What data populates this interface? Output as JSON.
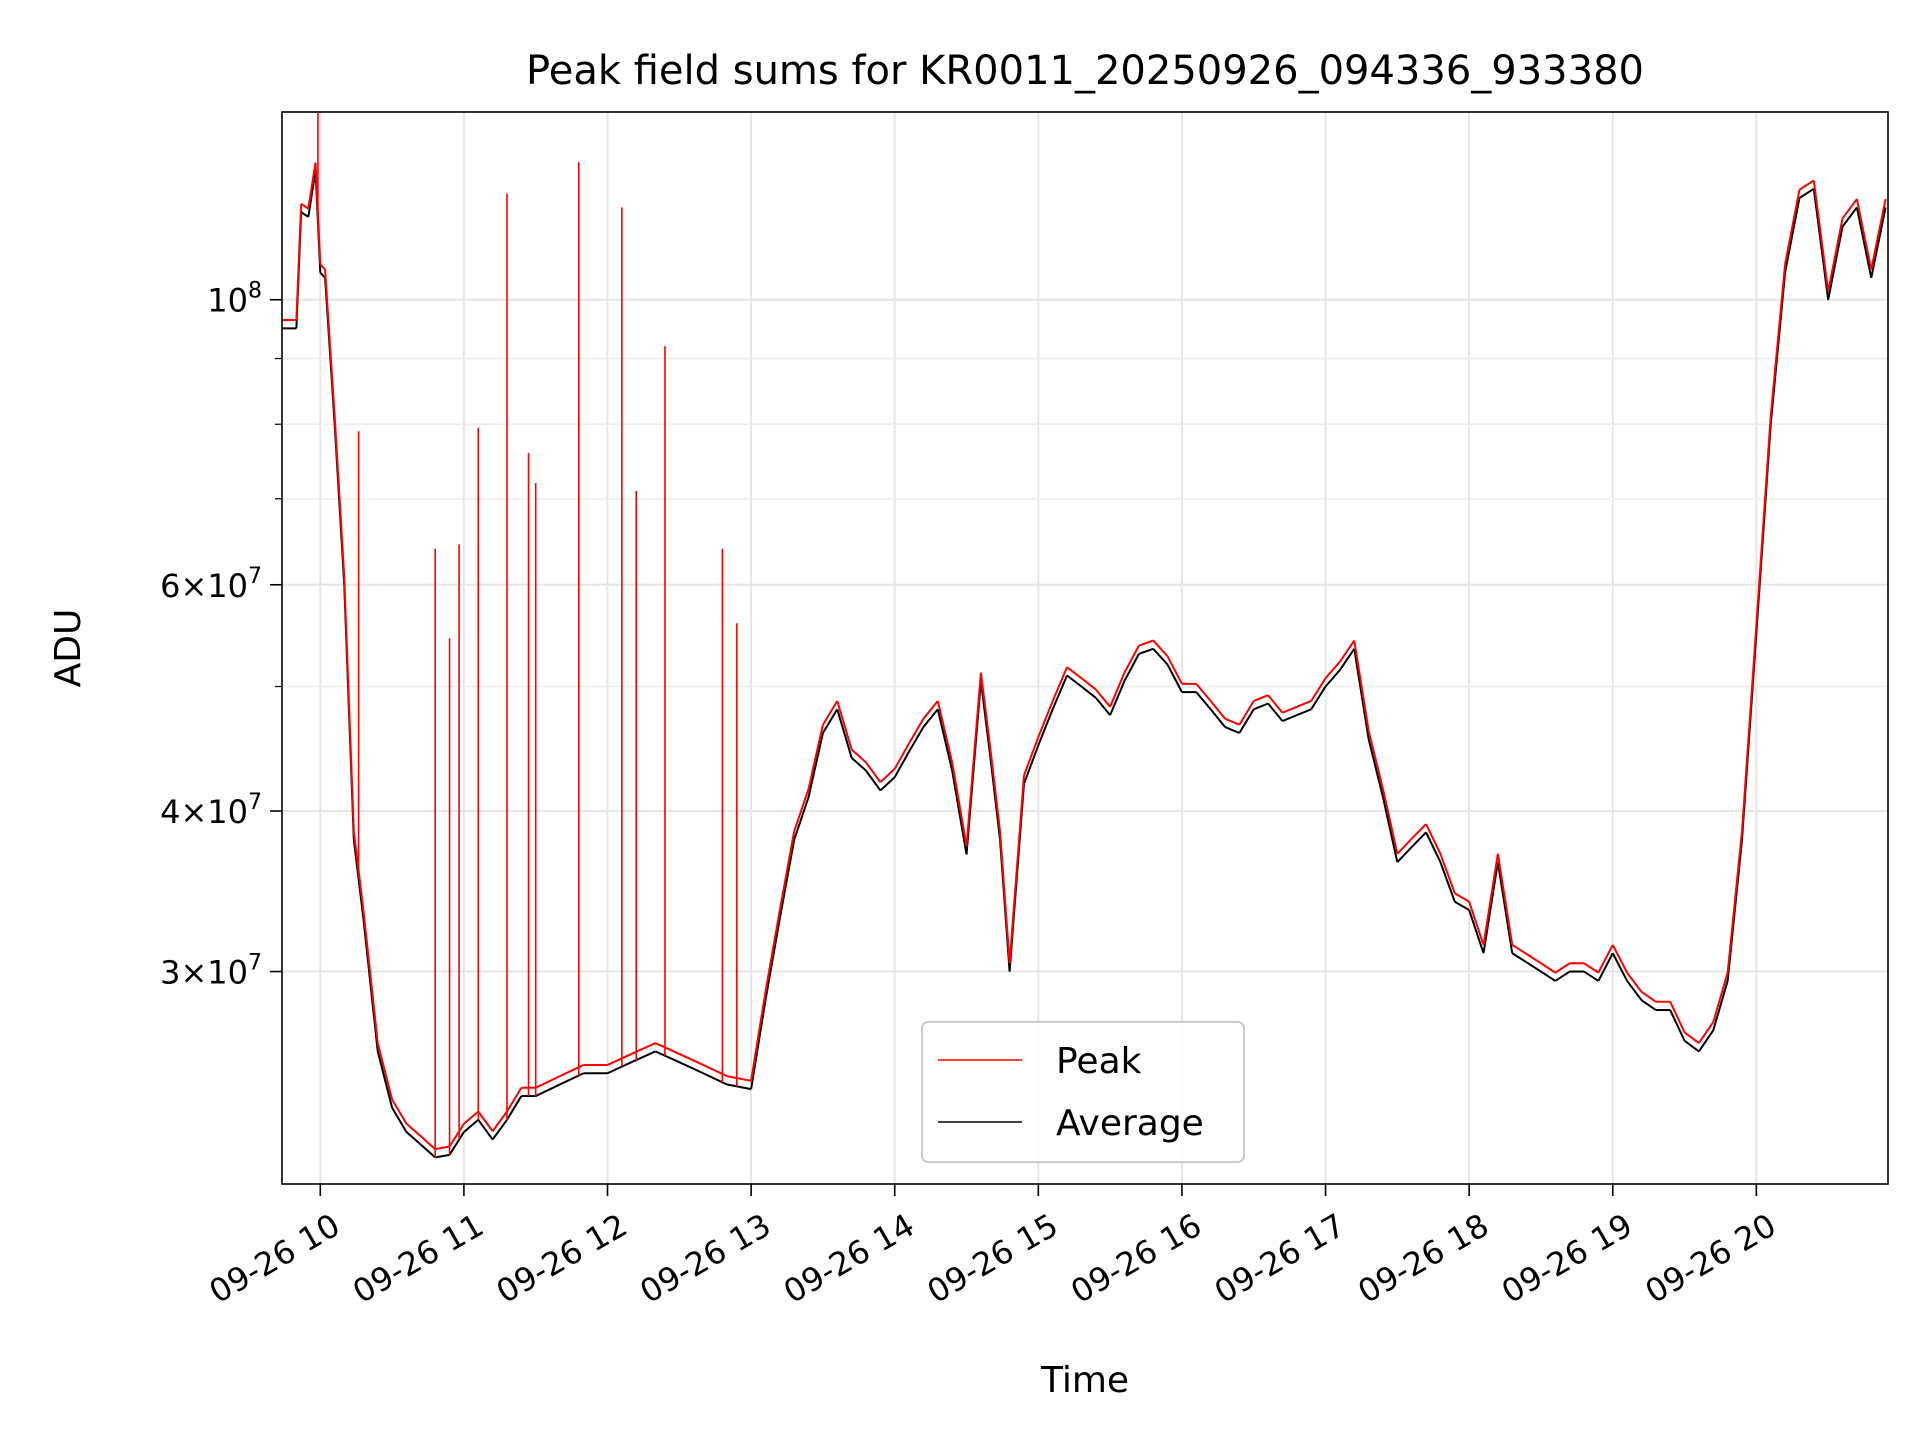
{
  "chart_data": {
    "type": "line",
    "title": "Peak field sums for KR0011_20250926_094336_933380",
    "xlabel": "Time",
    "ylabel": "ADU",
    "xscale": "time",
    "yscale": "log",
    "xlim": [
      "2025-09-26 09:44",
      "2025-09-26 20:55"
    ],
    "ylim": [
      20500000,
      140000000
    ],
    "grid": true,
    "legend_position": "lower-center",
    "x_ticks": [
      "09-26 10",
      "09-26 11",
      "09-26 12",
      "09-26 13",
      "09-26 14",
      "09-26 15",
      "09-26 16",
      "09-26 17",
      "09-26 18",
      "09-26 19",
      "09-26 20"
    ],
    "y_ticks": [
      {
        "value": 30000000,
        "mantissa": "3",
        "exponent": "7"
      },
      {
        "value": 40000000,
        "mantissa": "4",
        "exponent": "7"
      },
      {
        "value": 60000000,
        "mantissa": "6",
        "exponent": "7"
      },
      {
        "value": 100000000,
        "mantissa": "",
        "exponent": "8"
      }
    ],
    "y_minor_ticks": [
      50000000,
      70000000,
      80000000,
      90000000
    ],
    "series": [
      {
        "name": "Average",
        "color": "#000000",
        "x": [
          "2025-09-26 09:44",
          "2025-09-26 09:50",
          "2025-09-26 09:52",
          "2025-09-26 09:55",
          "2025-09-26 09:58",
          "2025-09-26 10:00",
          "2025-09-26 10:02",
          "2025-09-26 10:06",
          "2025-09-26 10:10",
          "2025-09-26 10:14",
          "2025-09-26 10:18",
          "2025-09-26 10:24",
          "2025-09-26 10:30",
          "2025-09-26 10:36",
          "2025-09-26 10:42",
          "2025-09-26 10:48",
          "2025-09-26 10:54",
          "2025-09-26 11:00",
          "2025-09-26 11:06",
          "2025-09-26 11:12",
          "2025-09-26 11:18",
          "2025-09-26 11:24",
          "2025-09-26 11:30",
          "2025-09-26 11:40",
          "2025-09-26 11:50",
          "2025-09-26 12:00",
          "2025-09-26 12:10",
          "2025-09-26 12:20",
          "2025-09-26 12:30",
          "2025-09-26 12:40",
          "2025-09-26 12:50",
          "2025-09-26 13:00",
          "2025-09-26 13:06",
          "2025-09-26 13:12",
          "2025-09-26 13:18",
          "2025-09-26 13:24",
          "2025-09-26 13:30",
          "2025-09-26 13:36",
          "2025-09-26 13:42",
          "2025-09-26 13:48",
          "2025-09-26 13:54",
          "2025-09-26 14:00",
          "2025-09-26 14:06",
          "2025-09-26 14:12",
          "2025-09-26 14:18",
          "2025-09-26 14:24",
          "2025-09-26 14:30",
          "2025-09-26 14:36",
          "2025-09-26 14:40",
          "2025-09-26 14:44",
          "2025-09-26 14:48",
          "2025-09-26 14:54",
          "2025-09-26 15:00",
          "2025-09-26 15:06",
          "2025-09-26 15:12",
          "2025-09-26 15:18",
          "2025-09-26 15:24",
          "2025-09-26 15:30",
          "2025-09-26 15:36",
          "2025-09-26 15:42",
          "2025-09-26 15:48",
          "2025-09-26 15:54",
          "2025-09-26 16:00",
          "2025-09-26 16:06",
          "2025-09-26 16:12",
          "2025-09-26 16:18",
          "2025-09-26 16:24",
          "2025-09-26 16:30",
          "2025-09-26 16:36",
          "2025-09-26 16:42",
          "2025-09-26 16:48",
          "2025-09-26 16:54",
          "2025-09-26 17:00",
          "2025-09-26 17:06",
          "2025-09-26 17:12",
          "2025-09-26 17:18",
          "2025-09-26 17:24",
          "2025-09-26 17:30",
          "2025-09-26 17:36",
          "2025-09-26 17:42",
          "2025-09-26 17:48",
          "2025-09-26 17:54",
          "2025-09-26 18:00",
          "2025-09-26 18:06",
          "2025-09-26 18:12",
          "2025-09-26 18:18",
          "2025-09-26 18:24",
          "2025-09-26 18:30",
          "2025-09-26 18:36",
          "2025-09-26 18:42",
          "2025-09-26 18:48",
          "2025-09-26 18:54",
          "2025-09-26 19:00",
          "2025-09-26 19:06",
          "2025-09-26 19:12",
          "2025-09-26 19:18",
          "2025-09-26 19:24",
          "2025-09-26 19:30",
          "2025-09-26 19:36",
          "2025-09-26 19:42",
          "2025-09-26 19:48",
          "2025-09-26 19:54",
          "2025-09-26 20:00",
          "2025-09-26 20:06",
          "2025-09-26 20:12",
          "2025-09-26 20:18",
          "2025-09-26 20:24",
          "2025-09-26 20:30",
          "2025-09-26 20:36",
          "2025-09-26 20:42",
          "2025-09-26 20:48",
          "2025-09-26 20:54"
        ],
        "y": [
          95000000,
          95000000,
          117000000,
          116000000,
          126000000,
          105000000,
          104000000,
          80000000,
          60000000,
          38000000,
          33000000,
          26000000,
          23500000,
          22500000,
          22000000,
          21500000,
          21600000,
          22500000,
          23000000,
          22200000,
          23000000,
          24000000,
          24000000,
          24500000,
          25000000,
          25000000,
          25500000,
          26000000,
          25500000,
          25000000,
          24500000,
          24300000,
          28500000,
          33000000,
          38000000,
          41000000,
          46000000,
          48000000,
          44000000,
          43000000,
          41500000,
          42500000,
          44500000,
          46500000,
          48000000,
          43000000,
          37000000,
          50500000,
          44000000,
          38000000,
          30000000,
          42000000,
          45000000,
          48000000,
          51000000,
          50000000,
          49000000,
          47500000,
          50500000,
          53000000,
          53500000,
          52000000,
          49500000,
          49500000,
          48000000,
          46500000,
          46000000,
          48000000,
          48500000,
          47000000,
          47500000,
          48000000,
          50000000,
          51500000,
          53500000,
          45500000,
          41000000,
          36500000,
          37500000,
          38500000,
          36500000,
          34000000,
          33500000,
          31000000,
          36500000,
          31000000,
          30500000,
          30000000,
          29500000,
          30000000,
          30000000,
          29500000,
          31000000,
          29500000,
          28500000,
          28000000,
          28000000,
          26500000,
          26000000,
          27000000,
          29500000,
          38000000,
          55000000,
          80000000,
          105000000,
          120000000,
          122000000,
          100000000,
          114000000,
          118000000,
          104000000,
          118000000
        ]
      },
      {
        "name": "Peak",
        "color": "#ff0000",
        "spikes": [
          [
            "2025-09-26 09:59",
            140000000
          ],
          [
            "2025-09-26 10:16",
            79000000
          ],
          [
            "2025-09-26 10:48",
            64000000
          ],
          [
            "2025-09-26 10:54",
            54500000
          ],
          [
            "2025-09-26 10:58",
            64500000
          ],
          [
            "2025-09-26 11:06",
            79500000
          ],
          [
            "2025-09-26 11:18",
            121000000
          ],
          [
            "2025-09-26 11:27",
            76000000
          ],
          [
            "2025-09-26 11:30",
            72000000
          ],
          [
            "2025-09-26 11:48",
            128000000
          ],
          [
            "2025-09-26 12:06",
            118000000
          ],
          [
            "2025-09-26 12:12",
            71000000
          ],
          [
            "2025-09-26 12:24",
            92000000
          ],
          [
            "2025-09-26 12:48",
            64000000
          ],
          [
            "2025-09-26 12:54",
            56000000
          ]
        ]
      }
    ]
  }
}
